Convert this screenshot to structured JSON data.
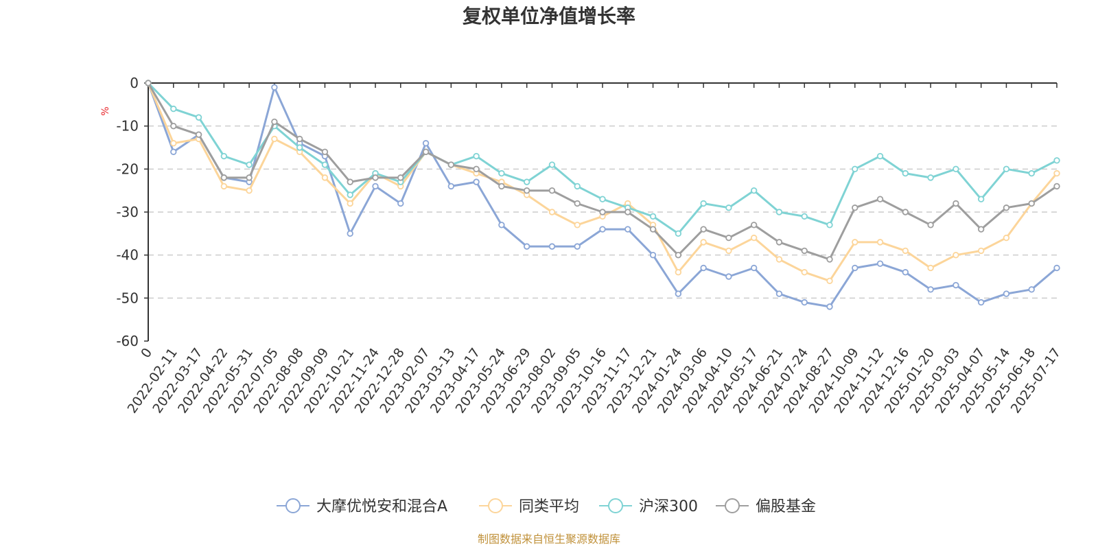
{
  "chart_data": {
    "type": "line",
    "title": "复权单位净值增长率",
    "ylabel": "%",
    "ylim": [
      -60,
      0
    ],
    "yticks": [
      0,
      -10,
      -20,
      -30,
      -40,
      -50,
      -60
    ],
    "grid": "horizontal-dashed",
    "legend_position": "bottom",
    "x_labels": [
      "0",
      "2022-02-11",
      "2022-03-17",
      "2022-04-22",
      "2022-05-31",
      "2022-07-05",
      "2022-08-08",
      "2022-09-09",
      "2022-10-21",
      "2022-11-24",
      "2022-12-28",
      "2023-02-07",
      "2023-03-13",
      "2023-04-17",
      "2023-05-24",
      "2023-06-29",
      "2023-08-02",
      "2023-09-05",
      "2023-10-16",
      "2023-11-17",
      "2023-12-21",
      "2024-01-24",
      "2024-03-06",
      "2024-04-10",
      "2024-05-17",
      "2024-06-21",
      "2024-07-24",
      "2024-08-27",
      "2024-10-09",
      "2024-11-12",
      "2024-12-16",
      "2025-01-20",
      "2025-03-03",
      "2025-04-07",
      "2025-05-14",
      "2025-06-18",
      "2025-07-17"
    ],
    "series": [
      {
        "name": "大摩优悦安和混合A",
        "color": "#8ba6d6",
        "values": [
          0,
          -16,
          -12,
          -22,
          -23,
          -1,
          -14,
          -17,
          -35,
          -24,
          -28,
          -14,
          -24,
          -23,
          -33,
          -38,
          -38,
          -38,
          -34,
          -34,
          -40,
          -49,
          -43,
          -45,
          -43,
          -49,
          -51,
          -52,
          -43,
          -42,
          -44,
          -48,
          -47,
          -51,
          -49,
          -48,
          -43
        ]
      },
      {
        "name": "同类平均",
        "color": "#fcd59a",
        "values": [
          0,
          -14,
          -13,
          -24,
          -25,
          -13,
          -16,
          -22,
          -28,
          -21,
          -24,
          -16,
          -19,
          -21,
          -23,
          -26,
          -30,
          -33,
          -31,
          -28,
          -33,
          -44,
          -37,
          -39,
          -36,
          -41,
          -44,
          -46,
          -37,
          -37,
          -39,
          -43,
          -40,
          -39,
          -36,
          -28,
          -21
        ]
      },
      {
        "name": "沪深300",
        "color": "#7fd3d4",
        "values": [
          0,
          -6,
          -8,
          -17,
          -19,
          -10,
          -15,
          -19,
          -26,
          -21,
          -23,
          -16,
          -19,
          -17,
          -21,
          -23,
          -19,
          -24,
          -27,
          -29,
          -31,
          -35,
          -28,
          -29,
          -25,
          -30,
          -31,
          -33,
          -20,
          -17,
          -21,
          -22,
          -20,
          -27,
          -20,
          -21,
          -18
        ]
      },
      {
        "name": "偏股基金",
        "color": "#9e9e9e",
        "values": [
          0,
          -10,
          -12,
          -22,
          -22,
          -9,
          -13,
          -16,
          -23,
          -22,
          -22,
          -16,
          -19,
          -20,
          -24,
          -25,
          -25,
          -28,
          -30,
          -30,
          -34,
          -40,
          -34,
          -36,
          -33,
          -37,
          -39,
          -41,
          -29,
          -27,
          -30,
          -33,
          -28,
          -34,
          -29,
          -28,
          -24
        ]
      }
    ]
  },
  "footer": {
    "source": "制图数据来自恒生聚源数据库"
  }
}
